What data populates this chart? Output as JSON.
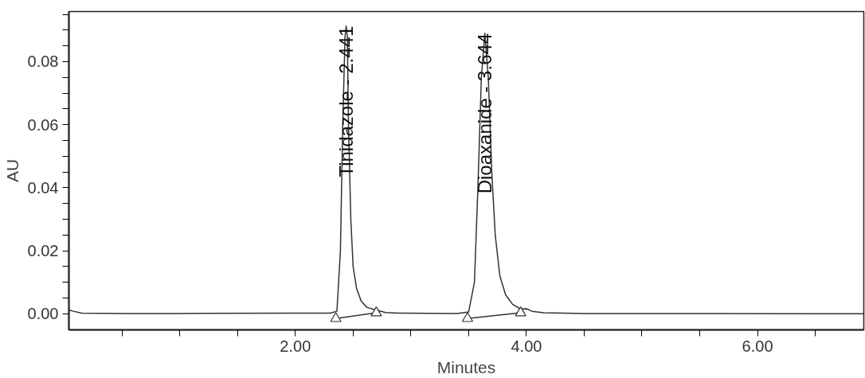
{
  "chart_data": {
    "type": "line",
    "xlabel": "Minutes",
    "ylabel": "AU",
    "xlim": [
      0.04,
      6.92
    ],
    "ylim": [
      -0.0051,
      0.0959
    ],
    "xticks": [
      {
        "value": 0.5,
        "label": null
      },
      {
        "value": 1.0,
        "label": null
      },
      {
        "value": 1.5,
        "label": null
      },
      {
        "value": 2.0,
        "label": "2.00"
      },
      {
        "value": 2.5,
        "label": null
      },
      {
        "value": 3.0,
        "label": null
      },
      {
        "value": 3.5,
        "label": null
      },
      {
        "value": 4.0,
        "label": "4.00"
      },
      {
        "value": 4.5,
        "label": null
      },
      {
        "value": 5.0,
        "label": null
      },
      {
        "value": 5.5,
        "label": null
      },
      {
        "value": 6.0,
        "label": "6.00"
      },
      {
        "value": 6.5,
        "label": null
      }
    ],
    "yticks": [
      {
        "value": 0.0,
        "label": "0.00"
      },
      {
        "value": 0.005,
        "label": null
      },
      {
        "value": 0.01,
        "label": null
      },
      {
        "value": 0.015,
        "label": null
      },
      {
        "value": 0.02,
        "label": "0.02"
      },
      {
        "value": 0.025,
        "label": null
      },
      {
        "value": 0.03,
        "label": null
      },
      {
        "value": 0.035,
        "label": null
      },
      {
        "value": 0.04,
        "label": "0.04"
      },
      {
        "value": 0.045,
        "label": null
      },
      {
        "value": 0.05,
        "label": null
      },
      {
        "value": 0.055,
        "label": null
      },
      {
        "value": 0.06,
        "label": "0.06"
      },
      {
        "value": 0.065,
        "label": null
      },
      {
        "value": 0.07,
        "label": null
      },
      {
        "value": 0.075,
        "label": null
      },
      {
        "value": 0.08,
        "label": "0.08"
      },
      {
        "value": 0.085,
        "label": null
      },
      {
        "value": 0.09,
        "label": null
      },
      {
        "value": 0.095,
        "label": null
      }
    ],
    "grid": false,
    "line_style": "solid",
    "series": [
      {
        "color": "#333333",
        "x": [
          0.04,
          0.08,
          0.15,
          0.5,
          1.0,
          2.0,
          2.3,
          2.36,
          2.39,
          2.41,
          2.43,
          2.44,
          2.45,
          2.46,
          2.48,
          2.5,
          2.53,
          2.57,
          2.62,
          2.7,
          2.78,
          2.9,
          3.4,
          3.5,
          3.55,
          3.58,
          3.61,
          3.64,
          3.67,
          3.7,
          3.73,
          3.77,
          3.82,
          3.88,
          3.95,
          4.0,
          4.05,
          4.15,
          4.5,
          5.5,
          6.92
        ],
        "values": [
          0.0012,
          0.0008,
          0.0002,
          0.0001,
          0.0001,
          0.0002,
          0.0002,
          0.0008,
          0.02,
          0.06,
          0.088,
          0.0913,
          0.088,
          0.06,
          0.03,
          0.015,
          0.008,
          0.004,
          0.002,
          0.0012,
          0.0004,
          0.0002,
          0.0001,
          0.0006,
          0.01,
          0.04,
          0.075,
          0.089,
          0.075,
          0.045,
          0.025,
          0.012,
          0.006,
          0.003,
          0.0015,
          0.0016,
          0.0008,
          0.0003,
          0.0001,
          0.0001,
          0.0
        ]
      },
      {
        "color": "#333333",
        "x": [
          2.35,
          2.7
        ],
        "values": [
          -0.0015,
          0.0003
        ]
      },
      {
        "color": "#333333",
        "x": [
          3.49,
          3.95
        ],
        "values": [
          -0.0015,
          0.0003
        ]
      },
      {
        "type": "scatter",
        "color": "#333333",
        "marker": "triangle",
        "x": [
          2.35,
          2.7,
          3.49,
          3.95
        ],
        "values": [
          -0.0015,
          0.0003,
          -0.0015,
          0.0003
        ]
      }
    ],
    "annotations": [
      {
        "text": "Tinidazole - 2.441",
        "x": 2.44,
        "y": 0.0913
      },
      {
        "text": "Dioaxanide - 3.644",
        "x": 3.64,
        "y": 0.089
      }
    ]
  }
}
